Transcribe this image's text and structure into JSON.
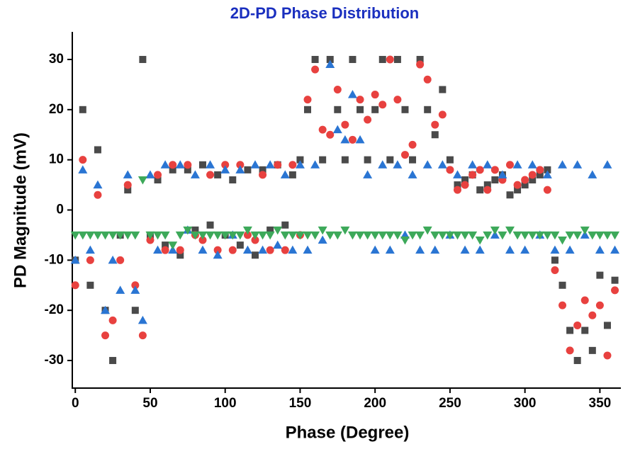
{
  "chart_data": {
    "type": "scatter",
    "title": "2D-PD Phase Distribution",
    "x_label": "Phase (Degree)",
    "y_label": "PD Magnitude (mV)",
    "x": [
      0,
      5,
      10,
      15,
      20,
      25,
      30,
      35,
      40,
      45,
      50,
      55,
      60,
      65,
      70,
      75,
      80,
      85,
      90,
      95,
      100,
      105,
      110,
      115,
      120,
      125,
      130,
      135,
      140,
      145,
      150,
      155,
      160,
      165,
      170,
      175,
      180,
      185,
      190,
      195,
      200,
      205,
      210,
      215,
      220,
      225,
      230,
      235,
      240,
      245,
      250,
      255,
      260,
      265,
      270,
      275,
      280,
      285,
      290,
      295,
      300,
      305,
      310,
      315,
      320,
      325,
      330,
      335,
      340,
      345,
      350,
      355,
      360
    ],
    "series": [
      {
        "color": "#4a4a4a",
        "marker": "square",
        "values": [
          -10,
          20,
          -15,
          12,
          -20,
          -30,
          -5,
          4,
          -20,
          30,
          -5,
          6,
          -7,
          8,
          -9,
          8,
          -4,
          9,
          -3,
          7,
          -5,
          6,
          -7,
          8,
          -9,
          8,
          -4,
          9,
          -3,
          7,
          10,
          20,
          30,
          10,
          30,
          20,
          10,
          30,
          20,
          10,
          20,
          30,
          10,
          30,
          20,
          10,
          30,
          20,
          15,
          24,
          10,
          5,
          6,
          7,
          4,
          5,
          6,
          7,
          3,
          4,
          5,
          6,
          7,
          8,
          -10,
          -15,
          -24,
          -30,
          -24,
          -28,
          -13,
          -23,
          -14
        ]
      },
      {
        "color": "#e8413f",
        "marker": "circle",
        "values": [
          -15,
          10,
          -10,
          3,
          -25,
          -22,
          -10,
          5,
          -15,
          -25,
          -6,
          7,
          -8,
          9,
          -8,
          9,
          -5,
          -6,
          7,
          -8,
          9,
          -8,
          9,
          -5,
          -6,
          7,
          -8,
          9,
          -8,
          9,
          -5,
          22,
          28,
          16,
          15,
          24,
          17,
          14,
          22,
          18,
          23,
          21,
          30,
          22,
          11,
          13,
          29,
          26,
          17,
          19,
          8,
          4,
          5,
          7,
          8,
          4,
          8,
          6,
          9,
          5,
          6,
          7,
          8,
          4,
          -12,
          -19,
          -28,
          -23,
          -18,
          -21,
          -19,
          -29,
          -16
        ]
      },
      {
        "color": "#2a75d3",
        "marker": "triangle-up",
        "values": [
          -10,
          8,
          -8,
          5,
          -20,
          -10,
          -16,
          7,
          -16,
          -22,
          7,
          -8,
          9,
          -8,
          9,
          -4,
          7,
          -8,
          9,
          -9,
          8,
          -5,
          8,
          -8,
          9,
          -8,
          9,
          -7,
          7,
          -8,
          9,
          -8,
          9,
          -6,
          29,
          16,
          14,
          23,
          14,
          7,
          -8,
          9,
          -8,
          9,
          -5,
          7,
          -8,
          9,
          -8,
          9,
          -5,
          7,
          -8,
          9,
          -8,
          9,
          -5,
          7,
          -8,
          9,
          -8,
          9,
          -5,
          7,
          -8,
          9,
          -8,
          9,
          -5,
          7,
          -8,
          9,
          -8
        ]
      },
      {
        "color": "#3da95a",
        "marker": "triangle-down",
        "values": [
          -5,
          -5,
          -5,
          -5,
          -5,
          -5,
          -5,
          -5,
          -5,
          6,
          -5,
          -5,
          -5,
          -7,
          -5,
          -4,
          -5,
          -5,
          -5,
          -5,
          -5,
          -5,
          -5,
          -4,
          -5,
          -5,
          -5,
          -4,
          -5,
          -5,
          -5,
          -5,
          -5,
          -4,
          -5,
          -5,
          -4,
          -5,
          -5,
          -5,
          -5,
          -5,
          -5,
          -5,
          -6,
          -5,
          -5,
          -4,
          -5,
          -5,
          -5,
          -5,
          -5,
          -5,
          -6,
          -5,
          -4,
          -5,
          -4,
          -5,
          -5,
          -5,
          -5,
          -5,
          -5,
          -6,
          -5,
          -5,
          -4,
          -5,
          -5,
          -5,
          -5
        ]
      }
    ],
    "xlim": [
      -2,
      364
    ],
    "xticks": [
      0,
      50,
      100,
      150,
      200,
      250,
      300,
      350
    ],
    "ylim": [
      -35.5,
      35.5
    ],
    "yticks": [
      -30,
      -20,
      -10,
      0,
      10,
      20,
      30
    ]
  }
}
